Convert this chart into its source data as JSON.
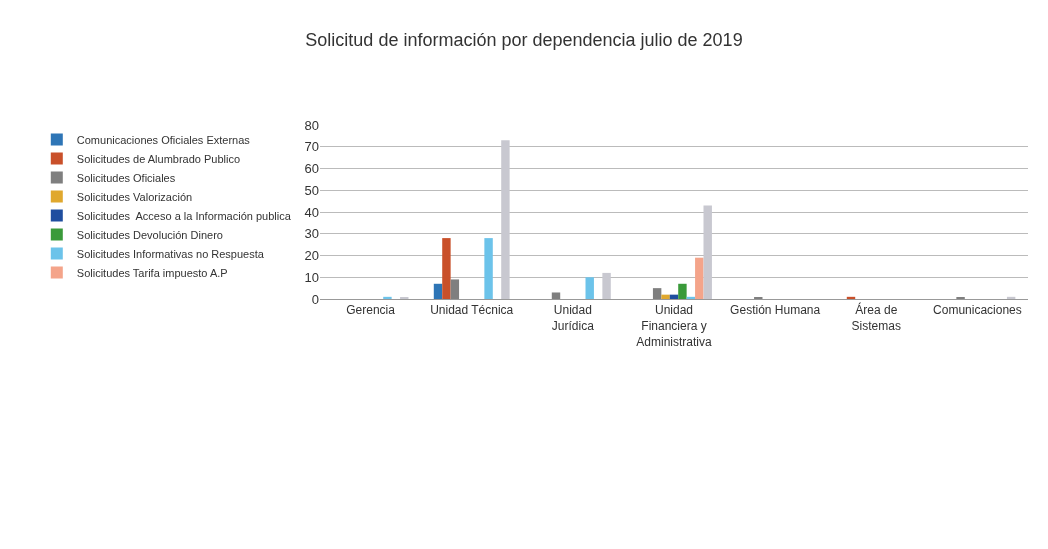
{
  "chart_data": {
    "type": "bar",
    "title": "Solicitud de información por dependencia julio de 2019",
    "categories": [
      "Gerencia",
      "Unidad Técnica",
      "Unidad Jurídica",
      "Unidad Financiera y Administrativa",
      "Gestión Humana",
      "Área de Sistemas",
      "Comunicaciones"
    ],
    "series": [
      {
        "name": "Comunicaciones Oficiales Externas",
        "color": "#2e75b6",
        "values": [
          0,
          7,
          0,
          0,
          0,
          0,
          0
        ]
      },
      {
        "name": "Solicitudes de Alumbrado Publico",
        "color": "#c9502a",
        "values": [
          0,
          28,
          0,
          0,
          0,
          1,
          0
        ]
      },
      {
        "name": "Solicitudes Oficiales",
        "color": "#7f7f7f",
        "values": [
          0,
          9,
          3,
          5,
          0.5,
          0,
          0.5
        ]
      },
      {
        "name": "Solicitudes Valorización",
        "color": "#e0a82e",
        "values": [
          0,
          0,
          0,
          2,
          0,
          0,
          0
        ]
      },
      {
        "name": "Solicitudes  Acceso a la Información publica",
        "color": "#1f4e9f",
        "values": [
          0,
          0,
          0,
          2,
          0,
          0,
          0
        ]
      },
      {
        "name": "Solicitudes Devolución Dinero",
        "color": "#3a9a3a",
        "values": [
          0,
          0,
          0,
          7,
          0,
          0,
          0
        ]
      },
      {
        "name": "Solicitudes Informativas no Respuesta",
        "color": "#6cc3ea",
        "values": [
          1,
          28,
          10,
          1,
          0,
          0,
          0
        ]
      },
      {
        "name": "Solicitudes Tarifa impuesto A.P",
        "color": "#f4a48a",
        "values": [
          0,
          0,
          0,
          19,
          0,
          0,
          0
        ]
      },
      {
        "color": "#c8c8d0",
        "values": [
          0.5,
          73,
          12,
          43,
          0,
          0,
          1
        ]
      }
    ],
    "ylim": [
      0,
      80
    ],
    "yticks": [
      0,
      10,
      20,
      30,
      40,
      50,
      60,
      70,
      80
    ],
    "grid": "y",
    "legend": "left"
  }
}
